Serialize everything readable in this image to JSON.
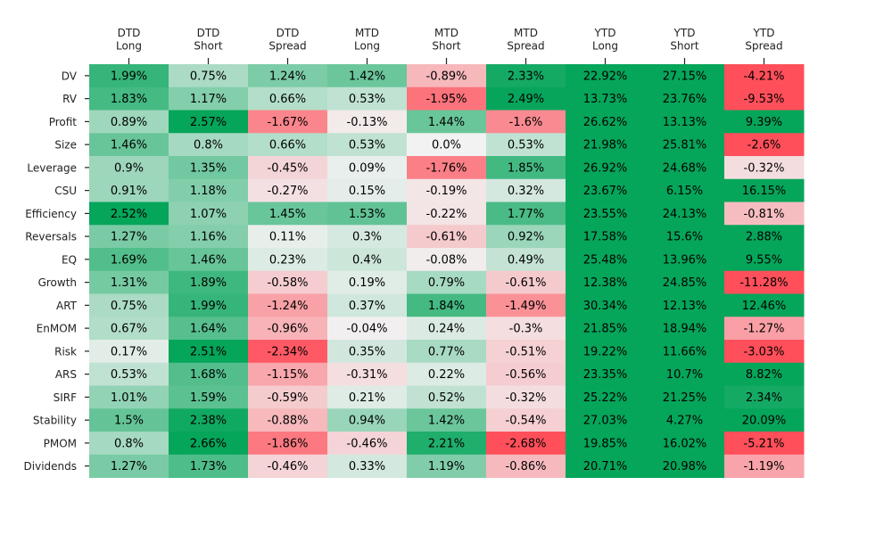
{
  "chart_data": {
    "type": "heatmap",
    "columns": [
      [
        "DTD",
        "Long"
      ],
      [
        "DTD",
        "Short"
      ],
      [
        "DTD",
        "Spread"
      ],
      [
        "MTD",
        "Long"
      ],
      [
        "MTD",
        "Short"
      ],
      [
        "MTD",
        "Spread"
      ],
      [
        "YTD",
        "Long"
      ],
      [
        "YTD",
        "Short"
      ],
      [
        "YTD",
        "Spread"
      ]
    ],
    "rows": [
      "DV",
      "RV",
      "Profit",
      "Size",
      "Leverage",
      "CSU",
      "Efficiency",
      "Reversals",
      "EQ",
      "Growth",
      "ART",
      "EnMOM",
      "Risk",
      "ARS",
      "SIRF",
      "Stability",
      "PMOM",
      "Dividends"
    ],
    "cells": [
      [
        "1.99%",
        "0.75%",
        "1.24%",
        "1.42%",
        "-0.89%",
        "2.33%",
        "22.92%",
        "27.15%",
        "-4.21%"
      ],
      [
        "1.83%",
        "1.17%",
        "0.66%",
        "0.53%",
        "-1.95%",
        "2.49%",
        "13.73%",
        "23.76%",
        "-9.53%"
      ],
      [
        "0.89%",
        "2.57%",
        "-1.67%",
        "-0.13%",
        "1.44%",
        "-1.6%",
        "26.62%",
        "13.13%",
        "9.39%"
      ],
      [
        "1.46%",
        "0.8%",
        "0.66%",
        "0.53%",
        "0.0%",
        "0.53%",
        "21.98%",
        "25.81%",
        "-2.6%"
      ],
      [
        "0.9%",
        "1.35%",
        "-0.45%",
        "0.09%",
        "-1.76%",
        "1.85%",
        "26.92%",
        "24.68%",
        "-0.32%"
      ],
      [
        "0.91%",
        "1.18%",
        "-0.27%",
        "0.15%",
        "-0.19%",
        "0.32%",
        "23.67%",
        "6.15%",
        "16.15%"
      ],
      [
        "2.52%",
        "1.07%",
        "1.45%",
        "1.53%",
        "-0.22%",
        "1.77%",
        "23.55%",
        "24.13%",
        "-0.81%"
      ],
      [
        "1.27%",
        "1.16%",
        "0.11%",
        "0.3%",
        "-0.61%",
        "0.92%",
        "17.58%",
        "15.6%",
        "2.88%"
      ],
      [
        "1.69%",
        "1.46%",
        "0.23%",
        "0.4%",
        "-0.08%",
        "0.49%",
        "25.48%",
        "13.96%",
        "9.55%"
      ],
      [
        "1.31%",
        "1.89%",
        "-0.58%",
        "0.19%",
        "0.79%",
        "-0.61%",
        "12.38%",
        "24.85%",
        "-11.28%"
      ],
      [
        "0.75%",
        "1.99%",
        "-1.24%",
        "0.37%",
        "1.84%",
        "-1.49%",
        "30.34%",
        "12.13%",
        "12.46%"
      ],
      [
        "0.67%",
        "1.64%",
        "-0.96%",
        "-0.04%",
        "0.24%",
        "-0.3%",
        "21.85%",
        "18.94%",
        "-1.27%"
      ],
      [
        "0.17%",
        "2.51%",
        "-2.34%",
        "0.35%",
        "0.77%",
        "-0.51%",
        "19.22%",
        "11.66%",
        "-3.03%"
      ],
      [
        "0.53%",
        "1.68%",
        "-1.15%",
        "-0.31%",
        "0.22%",
        "-0.56%",
        "23.35%",
        "10.7%",
        "8.82%"
      ],
      [
        "1.01%",
        "1.59%",
        "-0.59%",
        "0.21%",
        "0.52%",
        "-0.32%",
        "25.22%",
        "21.25%",
        "2.34%"
      ],
      [
        "1.5%",
        "2.38%",
        "-0.88%",
        "0.94%",
        "1.42%",
        "-0.54%",
        "27.03%",
        "4.27%",
        "20.09%"
      ],
      [
        "0.8%",
        "2.66%",
        "-1.86%",
        "-0.46%",
        "2.21%",
        "-2.68%",
        "19.85%",
        "16.02%",
        "-5.21%"
      ],
      [
        "1.27%",
        "1.73%",
        "-0.46%",
        "0.33%",
        "1.19%",
        "-0.86%",
        "20.71%",
        "20.98%",
        "-1.19%"
      ]
    ],
    "color_scale": {
      "negative": "#ff4f5a",
      "neutral": "#f2f2f2",
      "positive": "#05a55a",
      "saturation_at": 2.5
    },
    "xticks_position": "top",
    "legend": false,
    "grid": false
  }
}
